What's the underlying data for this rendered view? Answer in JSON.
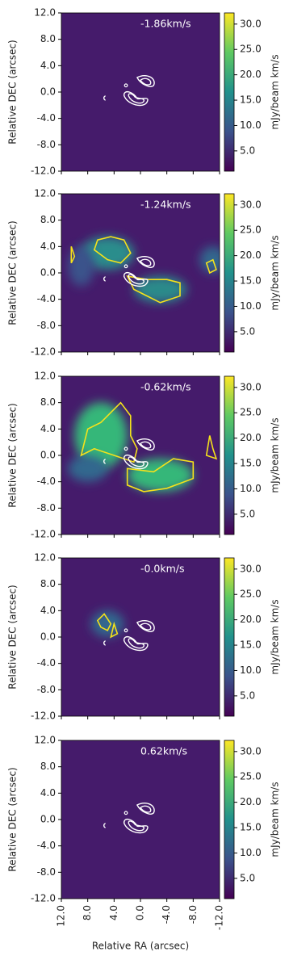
{
  "chart_data": [
    {
      "type": "image",
      "annotation": "-1.86km/s",
      "ylabel": "Relative DEC (arcsec)",
      "xlim": [
        12,
        -12
      ],
      "ylim": [
        -12,
        12
      ],
      "yticks": [
        {
          "value": 12,
          "label": "12.0"
        },
        {
          "value": 8,
          "label": "8.0"
        },
        {
          "value": 4,
          "label": "4.0"
        },
        {
          "value": 0,
          "label": "0.0"
        },
        {
          "value": -4,
          "label": "-4.0"
        },
        {
          "value": -8,
          "label": "-8.0"
        },
        {
          "value": -12,
          "label": "-12.0"
        }
      ],
      "colormap": "viridis",
      "clim": [
        1,
        32.2
      ],
      "colorbar_label": "mJy/beam km/s",
      "cticks": [
        {
          "value": 5,
          "label": "5.0"
        },
        {
          "value": 10,
          "label": "10.0"
        },
        {
          "value": 15,
          "label": "15.0"
        },
        {
          "value": 20,
          "label": "20.0"
        },
        {
          "value": 25,
          "label": "25.0"
        },
        {
          "value": 30,
          "label": "30.0"
        }
      ]
    },
    {
      "type": "image",
      "annotation": "-1.24km/s",
      "ylabel": "Relative DEC (arcsec)",
      "xlim": [
        12,
        -12
      ],
      "ylim": [
        -12,
        12
      ],
      "yticks": [
        {
          "value": 12,
          "label": "12.0"
        },
        {
          "value": 8,
          "label": "8.0"
        },
        {
          "value": 4,
          "label": "4.0"
        },
        {
          "value": 0,
          "label": "0.0"
        },
        {
          "value": -4,
          "label": "-4.0"
        },
        {
          "value": -8,
          "label": "-8.0"
        },
        {
          "value": -12,
          "label": "-12.0"
        }
      ],
      "colormap": "viridis",
      "clim": [
        1,
        32.2
      ],
      "colorbar_label": "mJy/beam km/s",
      "cticks": [
        {
          "value": 5,
          "label": "5.0"
        },
        {
          "value": 10,
          "label": "10.0"
        },
        {
          "value": 15,
          "label": "15.0"
        },
        {
          "value": 20,
          "label": "20.0"
        },
        {
          "value": 25,
          "label": "25.0"
        },
        {
          "value": 30,
          "label": "30.0"
        }
      ]
    },
    {
      "type": "image",
      "annotation": "-0.62km/s",
      "ylabel": "Relative DEC (arcsec)",
      "xlim": [
        12,
        -12
      ],
      "ylim": [
        -12,
        12
      ],
      "yticks": [
        {
          "value": 12,
          "label": "12.0"
        },
        {
          "value": 8,
          "label": "8.0"
        },
        {
          "value": 4,
          "label": "4.0"
        },
        {
          "value": 0,
          "label": "0.0"
        },
        {
          "value": -4,
          "label": "-4.0"
        },
        {
          "value": -8,
          "label": "-8.0"
        },
        {
          "value": -12,
          "label": "-12.0"
        }
      ],
      "colormap": "viridis",
      "clim": [
        1,
        32.2
      ],
      "colorbar_label": "mJy/beam km/s",
      "cticks": [
        {
          "value": 5,
          "label": "5.0"
        },
        {
          "value": 10,
          "label": "10.0"
        },
        {
          "value": 15,
          "label": "15.0"
        },
        {
          "value": 20,
          "label": "20.0"
        },
        {
          "value": 25,
          "label": "25.0"
        },
        {
          "value": 30,
          "label": "30.0"
        }
      ]
    },
    {
      "type": "image",
      "annotation": "-0.0km/s",
      "ylabel": "Relative DEC (arcsec)",
      "xlim": [
        12,
        -12
      ],
      "ylim": [
        -12,
        12
      ],
      "yticks": [
        {
          "value": 12,
          "label": "12.0"
        },
        {
          "value": 8,
          "label": "8.0"
        },
        {
          "value": 4,
          "label": "4.0"
        },
        {
          "value": 0,
          "label": "0.0"
        },
        {
          "value": -4,
          "label": "-4.0"
        },
        {
          "value": -8,
          "label": "-8.0"
        },
        {
          "value": -12,
          "label": "-12.0"
        }
      ],
      "colormap": "viridis",
      "clim": [
        1,
        32.2
      ],
      "colorbar_label": "mJy/beam km/s",
      "cticks": [
        {
          "value": 5,
          "label": "5.0"
        },
        {
          "value": 10,
          "label": "10.0"
        },
        {
          "value": 15,
          "label": "15.0"
        },
        {
          "value": 20,
          "label": "20.0"
        },
        {
          "value": 25,
          "label": "25.0"
        },
        {
          "value": 30,
          "label": "30.0"
        }
      ]
    },
    {
      "type": "image",
      "annotation": "0.62km/s",
      "ylabel": "Relative DEC (arcsec)",
      "xlabel": "Relative RA (arcsec)",
      "xlim": [
        12,
        -12
      ],
      "ylim": [
        -12,
        12
      ],
      "xticks": [
        {
          "value": 12,
          "label": "12.0"
        },
        {
          "value": 8,
          "label": "8.0"
        },
        {
          "value": 4,
          "label": "4.0"
        },
        {
          "value": 0,
          "label": "0.0"
        },
        {
          "value": -4,
          "label": "-4.0"
        },
        {
          "value": -8,
          "label": "-8.0"
        },
        {
          "value": -12,
          "label": "-12.0"
        }
      ],
      "yticks": [
        {
          "value": 12,
          "label": "12.0"
        },
        {
          "value": 8,
          "label": "8.0"
        },
        {
          "value": 4,
          "label": "4.0"
        },
        {
          "value": 0,
          "label": "0.0"
        },
        {
          "value": -4,
          "label": "-4.0"
        },
        {
          "value": -8,
          "label": "-8.0"
        },
        {
          "value": -12,
          "label": "-12.0"
        }
      ],
      "colormap": "viridis",
      "clim": [
        1,
        32.2
      ],
      "colorbar_label": "mJy/beam km/s",
      "cticks": [
        {
          "value": 5,
          "label": "5.0"
        },
        {
          "value": 10,
          "label": "10.0"
        },
        {
          "value": 15,
          "label": "15.0"
        },
        {
          "value": 20,
          "label": "20.0"
        },
        {
          "value": 25,
          "label": "25.0"
        },
        {
          "value": 30,
          "label": "30.0"
        }
      ]
    }
  ]
}
